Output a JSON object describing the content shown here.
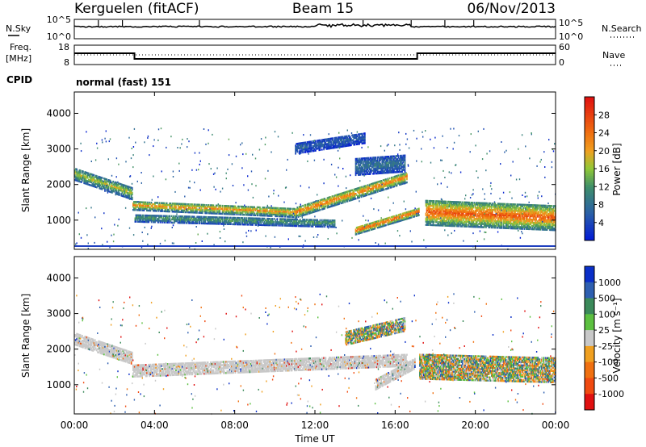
{
  "header": {
    "station": "Kerguelen (fitACF)",
    "beam": "Beam 15",
    "date": "06/Nov/2013"
  },
  "strip": {
    "nsky_label": "N.Sky",
    "nsky_ticks": [
      "10^5",
      "10^0"
    ],
    "nsearch_label": "N.Search",
    "nsearch_ticks": [
      "10^5",
      "10^0"
    ],
    "freq_label_line1": "Freq.",
    "freq_label_line2": "[MHz]",
    "freq_ticks": [
      "18",
      "8"
    ],
    "nave_label": "Nave",
    "nave_ticks": [
      "60",
      "0"
    ],
    "cpid_label": "CPID",
    "cpid_value": "normal (fast) 151"
  },
  "colors": {
    "frame": "#000000",
    "noise_line": "#1f3fbf",
    "ground_scatter": "#c8c8c8"
  },
  "chart_data": [
    {
      "type": "heatmap",
      "name": "power",
      "ylabel": "Slant Range [km]",
      "xlabel": "Time UT",
      "x_ticks": [
        "00:00",
        "04:00",
        "08:00",
        "12:00",
        "16:00",
        "20:00",
        "00:00"
      ],
      "x_range_hours": [
        0,
        24
      ],
      "y_ticks": [
        "1000",
        "2000",
        "3000",
        "4000"
      ],
      "y_range_km": [
        180,
        4600
      ],
      "colorbar": {
        "title": "Power [dB]",
        "tick_labels": [
          "28",
          "24",
          "20",
          "16",
          "12",
          "8",
          "4"
        ],
        "range": [
          0,
          32
        ],
        "stops": [
          {
            "value": 0,
            "color": "#0018d8"
          },
          {
            "value": 6,
            "color": "#2a5fa8"
          },
          {
            "value": 12,
            "color": "#3f8f6a"
          },
          {
            "value": 16,
            "color": "#8fc838"
          },
          {
            "value": 20,
            "color": "#f0a020"
          },
          {
            "value": 24,
            "color": "#f07010"
          },
          {
            "value": 32,
            "color": "#e01010"
          }
        ]
      },
      "features": [
        {
          "t0": 0.0,
          "t1": 2.9,
          "r0": 2300,
          "r1": 1750,
          "width_km": 380,
          "power": 16
        },
        {
          "t0": 2.9,
          "t1": 11.0,
          "r0": 1400,
          "r1": 1200,
          "width_km": 260,
          "power": 20
        },
        {
          "t0": 11.0,
          "t1": 16.6,
          "r0": 1200,
          "r1": 2200,
          "width_km": 300,
          "power": 22
        },
        {
          "t0": 3.0,
          "t1": 13.0,
          "r0": 1050,
          "r1": 900,
          "width_km": 220,
          "power": 12
        },
        {
          "t0": 14.0,
          "t1": 17.2,
          "r0": 700,
          "r1": 1250,
          "width_km": 240,
          "power": 24
        },
        {
          "t0": 17.5,
          "t1": 24.0,
          "r0": 1200,
          "r1": 1050,
          "width_km": 700,
          "power": 24
        },
        {
          "t0": 14.0,
          "t1": 16.5,
          "r0": 2500,
          "r1": 2600,
          "width_km": 500,
          "power": 8
        },
        {
          "t0": 11.0,
          "t1": 14.5,
          "r0": 3000,
          "r1": 3300,
          "width_km": 300,
          "power": 6
        }
      ]
    },
    {
      "type": "heatmap",
      "name": "velocity",
      "ylabel": "Slant Range [km]",
      "xlabel": "Time UT",
      "x_ticks": [
        "00:00",
        "04:00",
        "08:00",
        "12:00",
        "16:00",
        "20:00",
        "00:00"
      ],
      "x_range_hours": [
        0,
        24
      ],
      "y_ticks": [
        "1000",
        "2000",
        "3000",
        "4000"
      ],
      "y_range_km": [
        180,
        4600
      ],
      "colorbar": {
        "title": "Velocity [m s⁻¹]",
        "tick_labels": [
          "1000",
          "500",
          "100",
          "25",
          "-25",
          "-100",
          "-500",
          "-1000"
        ],
        "segments": [
          "#0a2fc8",
          "#2e5fb0",
          "#3b8a5a",
          "#5cc040",
          "#c8c8c8",
          "#f0a020",
          "#f07010",
          "#f04a10",
          "#e01010"
        ]
      },
      "features": [
        {
          "t0": 0.0,
          "t1": 2.9,
          "r0": 2300,
          "r1": 1750,
          "width_km": 380,
          "kind": "ground"
        },
        {
          "t0": 2.9,
          "t1": 16.6,
          "r0": 1400,
          "r1": 1700,
          "width_km": 380,
          "kind": "ground"
        },
        {
          "t0": 15.0,
          "t1": 17.0,
          "r0": 1000,
          "r1": 1600,
          "width_km": 300,
          "kind": "ground"
        },
        {
          "t0": 17.2,
          "t1": 24.0,
          "r0": 1500,
          "r1": 1400,
          "width_km": 700,
          "kind": "mixed"
        },
        {
          "t0": 13.5,
          "t1": 16.5,
          "r0": 2300,
          "r1": 2700,
          "width_km": 400,
          "kind": "mixed"
        }
      ]
    }
  ]
}
